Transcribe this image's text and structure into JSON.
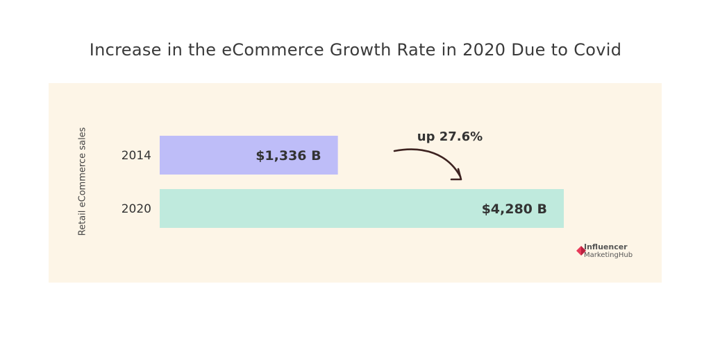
{
  "chart_data": {
    "type": "bar",
    "orientation": "horizontal",
    "title": "Increase in the eCommerce Growth Rate in 2020 Due to Covid",
    "ylabel": "Retail eCommerce sales",
    "categories": [
      "2014",
      "2020"
    ],
    "values": [
      1336,
      4280
    ],
    "value_labels": [
      "$1,336 B",
      "$4,280 B"
    ],
    "unit": "B",
    "colors": [
      "#bebdf8",
      "#bfeadd"
    ],
    "annotation": {
      "text": "up 27.6%",
      "from": "2014",
      "to": "2020"
    }
  },
  "watermark": {
    "line1": "Influencer",
    "line2": "MarketingHub",
    "accent": "#e83a5a"
  },
  "theme": {
    "panel": "#fdf5e7",
    "text": "#333333",
    "arrow": "#3d2220"
  }
}
